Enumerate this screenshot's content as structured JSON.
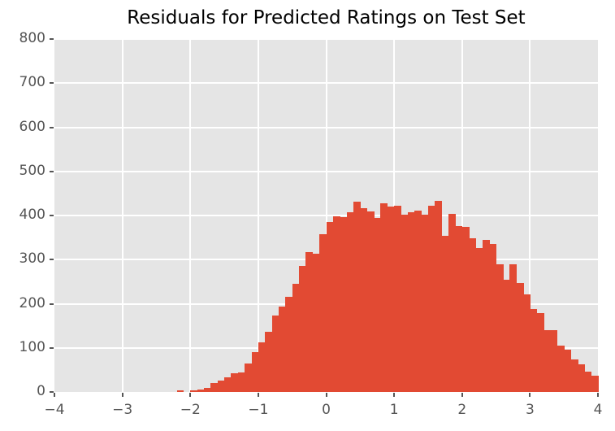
{
  "figure": {
    "title": "Residuals for Predicted Ratings on Test Set"
  },
  "colors": {
    "bar": "#E24A33",
    "plot_background": "#E5E5E5",
    "grid": "#FFFFFF",
    "tick_label": "#555555",
    "tick_mark": "#555555",
    "title_text": "#000000",
    "figure_background": "#FFFFFF"
  },
  "chart_data": {
    "type": "bar",
    "subtype": "histogram",
    "title": "Residuals for Predicted Ratings on Test Set",
    "xlabel": "",
    "ylabel": "",
    "xlim": [
      -4,
      4
    ],
    "ylim": [
      0,
      800
    ],
    "grid": true,
    "legend_position": "none",
    "bin_start": -2.2,
    "bin_width": 0.1,
    "counts": [
      4,
      0,
      3,
      5,
      10,
      20,
      25,
      33,
      43,
      44,
      64,
      90,
      113,
      136,
      174,
      194,
      216,
      245,
      285,
      317,
      314,
      358,
      385,
      399,
      396,
      407,
      432,
      416,
      410,
      394,
      428,
      421,
      422,
      402,
      408,
      412,
      402,
      423,
      434,
      354,
      403,
      376,
      374,
      349,
      326,
      344,
      335,
      290,
      255,
      289,
      247,
      221,
      188,
      178,
      140,
      140,
      105,
      96,
      74,
      62,
      46,
      37
    ],
    "x_tick_values": [
      -4,
      -3,
      -2,
      -1,
      0,
      1,
      2,
      3,
      4
    ],
    "x_tick_labels": [
      "−4",
      "−3",
      "−2",
      "−1",
      "0",
      "1",
      "2",
      "3",
      "4"
    ],
    "y_tick_values": [
      0,
      100,
      200,
      300,
      400,
      500,
      600,
      700,
      800
    ],
    "y_tick_labels": [
      "0",
      "100",
      "200",
      "300",
      "400",
      "500",
      "600",
      "700",
      "800"
    ]
  }
}
